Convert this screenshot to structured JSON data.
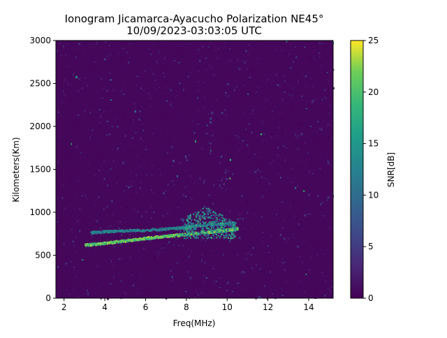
{
  "chart_data": {
    "type": "heatmap",
    "title_line1": "Ionogram Jicamarca-Ayacucho Polarization NE45°",
    "title_line2": "10/09/2023-03:03:05 UTC",
    "xlabel": "Freq(MHz)",
    "ylabel": "Kilometers(Km)",
    "colorbar_label": "SNR[dB]",
    "xlim": [
      1.6,
      15.2
    ],
    "ylim": [
      0,
      3000
    ],
    "xticks": [
      "2",
      "4",
      "6",
      "8",
      "10",
      "12",
      "14"
    ],
    "yticks": [
      "0",
      "500",
      "1000",
      "1500",
      "2000",
      "2500",
      "3000"
    ],
    "colorbar_ticks": [
      "0",
      "5",
      "10",
      "15",
      "20",
      "25"
    ],
    "clim": [
      0,
      25
    ],
    "colormap": "viridis",
    "traces": [
      {
        "name": "",
        "points": [
          [
            3.0,
            625
          ],
          [
            4.0,
            648
          ],
          [
            5.0,
            675
          ],
          [
            6.0,
            705
          ],
          [
            7.0,
            730
          ],
          [
            8.0,
            750
          ],
          [
            9.0,
            775
          ],
          [
            10.0,
            800
          ],
          [
            10.5,
            820
          ]
        ],
        "snr": 24
      },
      {
        "name": "",
        "points": [
          [
            3.3,
            770
          ],
          [
            4.5,
            790
          ],
          [
            6.0,
            800
          ],
          [
            7.5,
            820
          ],
          [
            8.5,
            850
          ],
          [
            9.5,
            870
          ],
          [
            10.4,
            880
          ]
        ],
        "snr": 16
      }
    ],
    "spread_region": {
      "x": [
        7.8,
        10.4
      ],
      "y": [
        700,
        1080
      ],
      "snr": 20
    }
  }
}
